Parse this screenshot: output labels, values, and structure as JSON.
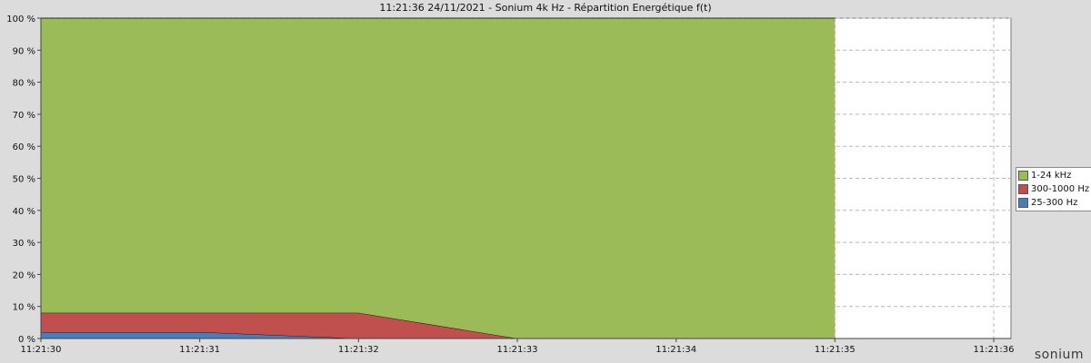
{
  "title": "11:21:36 24/11/2021 - Sonium 4k Hz - Répartition Energétique f(t)",
  "brand": "sonium",
  "chart_data": {
    "type": "area",
    "stacked": true,
    "x": [
      "11:21:30",
      "11:21:31",
      "11:21:32",
      "11:21:33",
      "11:21:34",
      "11:21:35",
      "11:21:36"
    ],
    "xticks": [
      "11:21:30",
      "11:21:31",
      "11:21:32",
      "11:21:33",
      "11:21:34",
      "11:21:35",
      "11:21:36"
    ],
    "x_data_end": "11:21:35",
    "ylim": [
      0,
      100
    ],
    "yticks": [
      "0 %",
      "10 %",
      "20 %",
      "30 %",
      "40 %",
      "50 %",
      "60 %",
      "70 %",
      "80 %",
      "90 %",
      "100 %"
    ],
    "grid": true,
    "legend_position": "right",
    "series": [
      {
        "name": "25-300 Hz",
        "color": "#4a7ebb",
        "points": [
          [
            "11:21:30",
            2
          ],
          [
            "11:21:31",
            2
          ],
          [
            "11:21:32",
            0
          ],
          [
            "11:21:33",
            0
          ],
          [
            "11:21:34",
            0
          ],
          [
            "11:21:35",
            0
          ]
        ]
      },
      {
        "name": "300-1000 Hz",
        "color": "#c0504d",
        "points": [
          [
            "11:21:30",
            6
          ],
          [
            "11:21:31",
            6
          ],
          [
            "11:21:32",
            8
          ],
          [
            "11:21:33",
            0
          ],
          [
            "11:21:34",
            0
          ],
          [
            "11:21:35",
            0
          ]
        ]
      },
      {
        "name": "1-24 kHz",
        "color": "#9bbb59",
        "points": [
          [
            "11:21:30",
            92
          ],
          [
            "11:21:31",
            92
          ],
          [
            "11:21:32",
            92
          ],
          [
            "11:21:33",
            100
          ],
          [
            "11:21:34",
            100
          ],
          [
            "11:21:35",
            100
          ]
        ]
      }
    ]
  }
}
